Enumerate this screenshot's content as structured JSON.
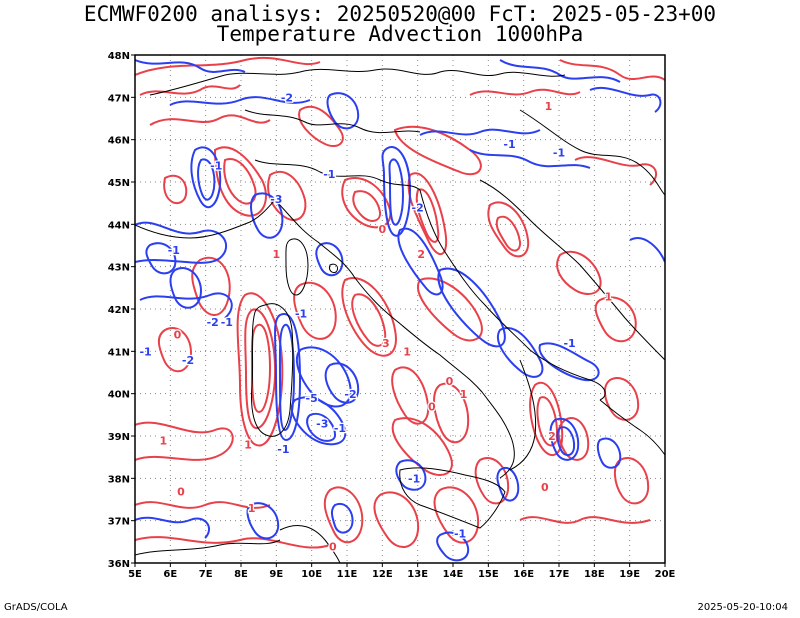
{
  "title_line1": "ECMWF0200 analisys: 20250520@00 FcT: 2025-05-23+00",
  "title_line2": "Temperature Advection 1000hPa",
  "footer_left": "GrADS/COLA",
  "footer_right": "2025-05-20-10:04",
  "map": {
    "lon_range": [
      5,
      20
    ],
    "lat_range": [
      36,
      48
    ],
    "lon_ticks": [
      "5E",
      "6E",
      "7E",
      "8E",
      "9E",
      "10E",
      "11E",
      "12E",
      "13E",
      "14E",
      "15E",
      "16E",
      "17E",
      "18E",
      "19E",
      "20E"
    ],
    "lat_ticks": [
      "36N",
      "37N",
      "38N",
      "39N",
      "40N",
      "41N",
      "42N",
      "43N",
      "44N",
      "45N",
      "46N",
      "47N",
      "48N"
    ],
    "grid": "dotted",
    "colors": {
      "warm_advection": "#e8414a",
      "cold_advection": "#2b3ff0",
      "coastline": "#000000"
    },
    "contour_labels": [
      {
        "text": "-2",
        "lon": 9.3,
        "lat": 46.9,
        "kind": "cold"
      },
      {
        "text": "-1",
        "lon": 7.3,
        "lat": 45.3,
        "kind": "cold"
      },
      {
        "text": "-1",
        "lon": 6.1,
        "lat": 43.3,
        "kind": "cold"
      },
      {
        "text": "-3",
        "lon": 9.0,
        "lat": 44.5,
        "kind": "cold"
      },
      {
        "text": "-1",
        "lon": 10.5,
        "lat": 45.1,
        "kind": "cold"
      },
      {
        "text": "-1",
        "lon": 9.7,
        "lat": 41.8,
        "kind": "cold"
      },
      {
        "text": "-2",
        "lon": 7.2,
        "lat": 41.6,
        "kind": "cold"
      },
      {
        "text": "-1",
        "lon": 7.6,
        "lat": 41.6,
        "kind": "cold"
      },
      {
        "text": "-2",
        "lon": 6.5,
        "lat": 40.7,
        "kind": "cold"
      },
      {
        "text": "-1",
        "lon": 5.3,
        "lat": 40.9,
        "kind": "cold"
      },
      {
        "text": "-5",
        "lon": 10.0,
        "lat": 39.8,
        "kind": "cold"
      },
      {
        "text": "-2",
        "lon": 11.1,
        "lat": 39.9,
        "kind": "cold"
      },
      {
        "text": "-3",
        "lon": 10.3,
        "lat": 39.2,
        "kind": "cold"
      },
      {
        "text": "-1",
        "lon": 10.8,
        "lat": 39.1,
        "kind": "cold"
      },
      {
        "text": "-1",
        "lon": 9.2,
        "lat": 38.6,
        "kind": "cold"
      },
      {
        "text": "-2",
        "lon": 13.0,
        "lat": 44.3,
        "kind": "cold"
      },
      {
        "text": "-1",
        "lon": 15.6,
        "lat": 45.8,
        "kind": "cold"
      },
      {
        "text": "-1",
        "lon": 17.0,
        "lat": 45.6,
        "kind": "cold"
      },
      {
        "text": "-1",
        "lon": 17.3,
        "lat": 41.1,
        "kind": "cold"
      },
      {
        "text": "-1",
        "lon": 14.2,
        "lat": 36.6,
        "kind": "cold"
      },
      {
        "text": "-1",
        "lon": 12.9,
        "lat": 37.9,
        "kind": "cold"
      },
      {
        "text": "1",
        "lon": 16.7,
        "lat": 46.7,
        "kind": "warm"
      },
      {
        "text": "1",
        "lon": 9.0,
        "lat": 43.2,
        "kind": "warm"
      },
      {
        "text": "2",
        "lon": 13.1,
        "lat": 43.2,
        "kind": "warm"
      },
      {
        "text": "3",
        "lon": 12.1,
        "lat": 41.1,
        "kind": "warm"
      },
      {
        "text": "1",
        "lon": 12.7,
        "lat": 40.9,
        "kind": "warm"
      },
      {
        "text": "0",
        "lon": 13.9,
        "lat": 40.2,
        "kind": "warm"
      },
      {
        "text": "1",
        "lon": 14.3,
        "lat": 39.9,
        "kind": "warm"
      },
      {
        "text": "2",
        "lon": 16.8,
        "lat": 38.9,
        "kind": "warm"
      },
      {
        "text": "0",
        "lon": 16.6,
        "lat": 37.7,
        "kind": "warm"
      },
      {
        "text": "0",
        "lon": 6.2,
        "lat": 41.3,
        "kind": "warm"
      },
      {
        "text": "0",
        "lon": 6.3,
        "lat": 37.6,
        "kind": "warm"
      },
      {
        "text": "1",
        "lon": 8.3,
        "lat": 37.2,
        "kind": "warm"
      },
      {
        "text": "1",
        "lon": 8.2,
        "lat": 38.7,
        "kind": "warm"
      },
      {
        "text": "0",
        "lon": 13.4,
        "lat": 39.6,
        "kind": "warm"
      },
      {
        "text": "1",
        "lon": 18.4,
        "lat": 42.2,
        "kind": "warm"
      },
      {
        "text": "0",
        "lon": 12.0,
        "lat": 43.8,
        "kind": "warm"
      },
      {
        "text": "0",
        "lon": 10.6,
        "lat": 36.3,
        "kind": "warm"
      },
      {
        "text": "1",
        "lon": 5.8,
        "lat": 38.8,
        "kind": "warm"
      }
    ]
  }
}
